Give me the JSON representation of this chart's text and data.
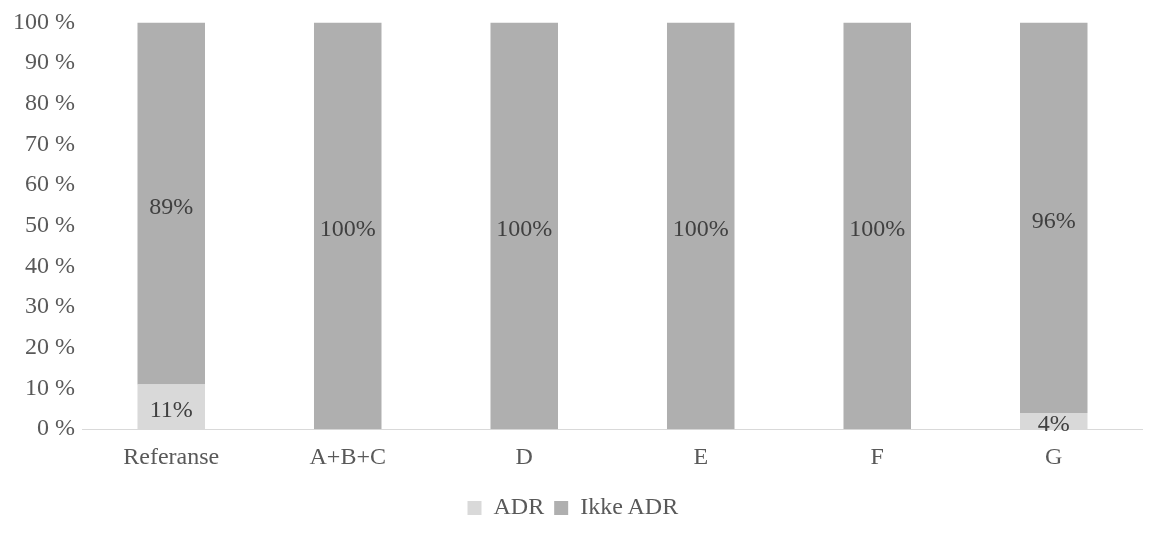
{
  "chart_data": {
    "type": "bar",
    "stacked": true,
    "categories": [
      "Referanse",
      "A+B+C",
      "D",
      "E",
      "F",
      "G"
    ],
    "series": [
      {
        "name": "ADR",
        "color": "#d9d9d9",
        "values": [
          11,
          0,
          0,
          0,
          0,
          4
        ],
        "value_labels": [
          "11%",
          null,
          null,
          null,
          null,
          "4%"
        ]
      },
      {
        "name": "Ikke ADR",
        "color": "#afafaf",
        "values": [
          89,
          100,
          100,
          100,
          100,
          96
        ],
        "value_labels": [
          "89%",
          "100%",
          "100%",
          "100%",
          "100%",
          "96%"
        ]
      }
    ],
    "ylim": [
      0,
      100
    ],
    "yticks": [
      {
        "value": 0,
        "label": "0 %"
      },
      {
        "value": 10,
        "label": "10 %"
      },
      {
        "value": 20,
        "label": "20 %"
      },
      {
        "value": 30,
        "label": "30 %"
      },
      {
        "value": 40,
        "label": "40 %"
      },
      {
        "value": 50,
        "label": "50 %"
      },
      {
        "value": 60,
        "label": "60 %"
      },
      {
        "value": 70,
        "label": "70 %"
      },
      {
        "value": 80,
        "label": "80 %"
      },
      {
        "value": 90,
        "label": "90 %"
      },
      {
        "value": 100,
        "label": "100 %"
      }
    ],
    "grid": false,
    "legend": "bottom"
  }
}
